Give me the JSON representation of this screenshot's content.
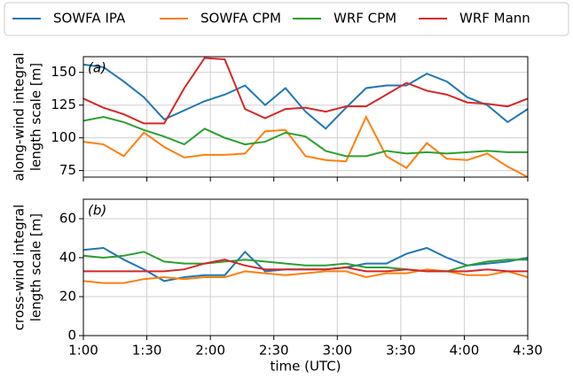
{
  "chart_data": [
    {
      "type": "line",
      "panel_label": "(a)",
      "ylabel": [
        "along-wind integral",
        "length scale [m]"
      ],
      "x": [
        60,
        69.5,
        79.1,
        88.6,
        98.2,
        107.7,
        117.3,
        126.8,
        136.4,
        145.9,
        155.5,
        165,
        174.5,
        184.1,
        193.6,
        203.2,
        212.7,
        222.3,
        231.8,
        241.4,
        250.9,
        260.5,
        270
      ],
      "xlim": [
        60,
        270
      ],
      "xticks": [
        60,
        90,
        120,
        150,
        180,
        210,
        240,
        270
      ],
      "ylim": [
        70,
        162
      ],
      "yticks": [
        75,
        100,
        125,
        150
      ],
      "grid": true,
      "legend": "top-outside",
      "series": [
        {
          "name": "SOWFA IPA",
          "color": "#1f77b4",
          "values": [
            156,
            154,
            143,
            131,
            114,
            121,
            128,
            133,
            140,
            125,
            138,
            120,
            107,
            123,
            138,
            140,
            140,
            149,
            143,
            131,
            125,
            112,
            122
          ]
        },
        {
          "name": "SOWFA CPM",
          "color": "#ff7f0e",
          "values": [
            97,
            95,
            86,
            104,
            93,
            85,
            87,
            87,
            88,
            105,
            106,
            86,
            83,
            82,
            116,
            86,
            77,
            96,
            84,
            83,
            88,
            78,
            70
          ]
        },
        {
          "name": "WRF CPM",
          "color": "#2ca02c",
          "values": [
            113,
            116,
            112,
            106,
            101,
            95,
            107,
            100,
            95,
            97,
            104,
            101,
            90,
            86,
            86,
            90,
            88,
            89,
            88,
            89,
            90,
            89,
            89
          ]
        },
        {
          "name": "WRF Mann",
          "color": "#d62728",
          "values": [
            130,
            123,
            118,
            111,
            111,
            138,
            161,
            160,
            122,
            115,
            122,
            123,
            120,
            124,
            124,
            133,
            142,
            136,
            133,
            127,
            126,
            124,
            130
          ]
        }
      ]
    },
    {
      "type": "line",
      "panel_label": "(b)",
      "ylabel": [
        "cross-wind integral",
        "length scale [m]"
      ],
      "xlabel": "time (UTC)",
      "x": [
        60,
        69.5,
        79.1,
        88.6,
        98.2,
        107.7,
        117.3,
        126.8,
        136.4,
        145.9,
        155.5,
        165,
        174.5,
        184.1,
        193.6,
        203.2,
        212.7,
        222.3,
        231.8,
        241.4,
        250.9,
        260.5,
        270
      ],
      "xlim": [
        60,
        270
      ],
      "xticks": [
        {
          "value": 60,
          "label": "1:00"
        },
        {
          "value": 90,
          "label": "1:30"
        },
        {
          "value": 120,
          "label": "2:00"
        },
        {
          "value": 150,
          "label": "2:30"
        },
        {
          "value": 180,
          "label": "3:00"
        },
        {
          "value": 210,
          "label": "3:30"
        },
        {
          "value": 240,
          "label": "4:00"
        },
        {
          "value": 270,
          "label": "4:30"
        }
      ],
      "ylim": [
        0,
        70
      ],
      "yticks": [
        0,
        20,
        40,
        60
      ],
      "grid": true,
      "series": [
        {
          "color": "#1f77b4",
          "values": [
            44,
            45,
            39,
            34,
            28,
            30,
            31,
            31,
            43,
            33,
            34,
            34,
            34,
            35,
            37,
            37,
            42,
            45,
            40,
            36,
            37,
            38,
            40
          ]
        },
        {
          "color": "#ff7f0e",
          "values": [
            28,
            27,
            27,
            29,
            30,
            29,
            30,
            30,
            33,
            32,
            31,
            32,
            33,
            33,
            30,
            32,
            32,
            34,
            33,
            31,
            31,
            33,
            30
          ]
        },
        {
          "color": "#2ca02c",
          "values": [
            41,
            40,
            41,
            43,
            38,
            37,
            37,
            38,
            39,
            38,
            37,
            36,
            36,
            37,
            35,
            35,
            34,
            33,
            33,
            36,
            38,
            39,
            39
          ]
        },
        {
          "color": "#d62728",
          "values": [
            33,
            33,
            33,
            33,
            33,
            34,
            37,
            39,
            36,
            34,
            34,
            34,
            34,
            35,
            33,
            33,
            34,
            33,
            33,
            33,
            34,
            33,
            33
          ]
        }
      ]
    }
  ]
}
